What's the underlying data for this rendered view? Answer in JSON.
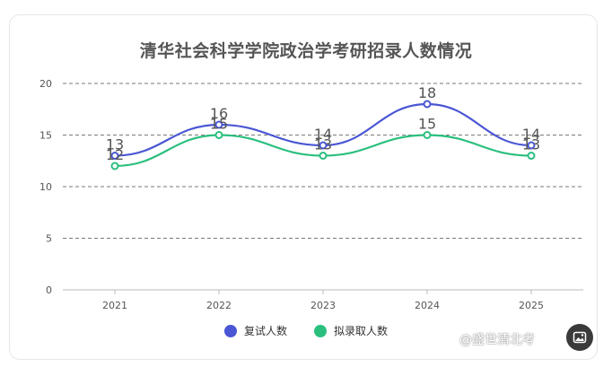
{
  "chart_data": {
    "type": "line",
    "title": "清华社会科学学院政治学考研招录人数情况",
    "categories": [
      "2021",
      "2022",
      "2023",
      "2024",
      "2025"
    ],
    "ylim": [
      0,
      20
    ],
    "yticks": [
      0,
      5,
      10,
      15,
      20
    ],
    "grid": true,
    "legend_position": "bottom",
    "series": [
      {
        "name": "复试人数",
        "values": [
          13,
          16,
          14,
          18,
          14
        ],
        "color": "#4a56d4"
      },
      {
        "name": "拟录取人数",
        "values": [
          12,
          15,
          13,
          15,
          13
        ],
        "color": "#2bbf7e"
      }
    ]
  },
  "watermark": "@盛世清北考",
  "corner_icon": "image-icon"
}
